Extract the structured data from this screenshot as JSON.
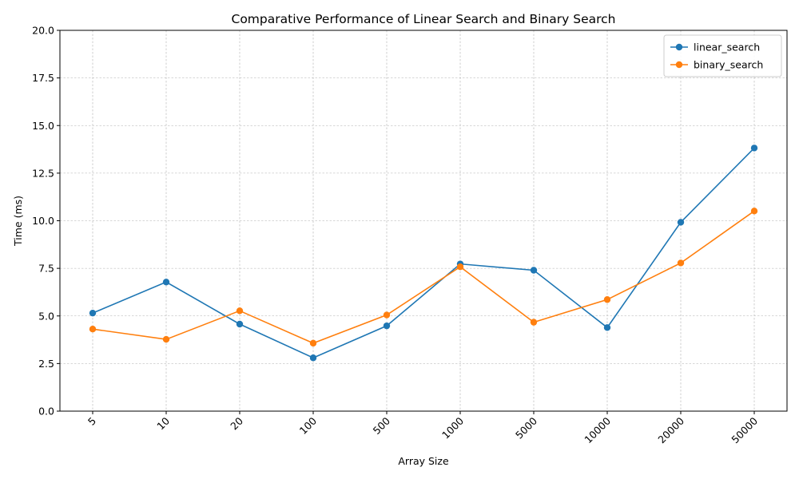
{
  "chart_data": {
    "type": "line",
    "title": "Comparative Performance of Linear Search and Binary Search",
    "xlabel": "Array Size",
    "ylabel": "Time (ms)",
    "categories": [
      "5",
      "10",
      "20",
      "100",
      "500",
      "1000",
      "5000",
      "10000",
      "20000",
      "50000"
    ],
    "ylim": [
      0,
      20
    ],
    "yticks": [
      "0.0",
      "2.5",
      "5.0",
      "7.5",
      "10.0",
      "12.5",
      "15.0",
      "17.5",
      "20.0"
    ],
    "grid": true,
    "legend_position": "top-right",
    "series": [
      {
        "name": "linear_search",
        "color": "#1f77b4",
        "values": [
          5.15,
          6.78,
          4.57,
          2.8,
          4.48,
          7.73,
          7.4,
          4.39,
          9.92,
          13.82
        ]
      },
      {
        "name": "binary_search",
        "color": "#ff7f0e",
        "values": [
          4.31,
          3.77,
          5.27,
          3.57,
          5.05,
          7.58,
          4.67,
          5.86,
          7.78,
          10.51
        ]
      }
    ]
  }
}
